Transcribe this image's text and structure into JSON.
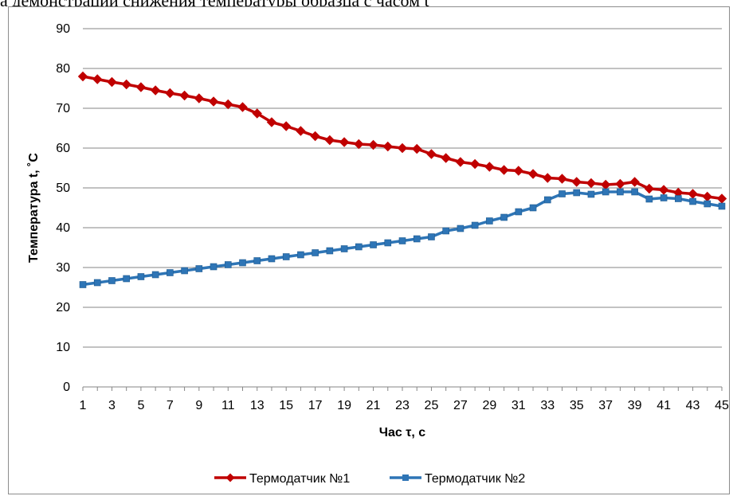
{
  "page": {
    "top_text": "а демонстрации снижения температуры образца с часом t"
  },
  "chart_data": {
    "type": "line",
    "title": "",
    "xlabel": "Час τ, с",
    "ylabel": "Температура t, ˚С",
    "ylim": [
      0,
      90
    ],
    "yticks": [
      "0",
      "10",
      "20",
      "30",
      "40",
      "50",
      "60",
      "70",
      "80",
      "90"
    ],
    "x": [
      1,
      2,
      3,
      4,
      5,
      6,
      7,
      8,
      9,
      10,
      11,
      12,
      13,
      14,
      15,
      16,
      17,
      18,
      19,
      20,
      21,
      22,
      23,
      24,
      25,
      26,
      27,
      28,
      29,
      30,
      31,
      32,
      33,
      34,
      35,
      36,
      37,
      38,
      39,
      40,
      41,
      42,
      43,
      44,
      45
    ],
    "xticks": [
      "1",
      "3",
      "5",
      "7",
      "9",
      "11",
      "13",
      "15",
      "17",
      "19",
      "21",
      "23",
      "25",
      "27",
      "29",
      "31",
      "33",
      "35",
      "37",
      "39",
      "41",
      "43",
      "45"
    ],
    "grid": true,
    "legend_position": "bottom",
    "series": [
      {
        "name": "Термодатчик №1",
        "color": "#c00000",
        "marker": "diamond",
        "values": [
          78.0,
          77.3,
          76.6,
          76.0,
          75.3,
          74.5,
          73.8,
          73.2,
          72.5,
          71.7,
          71.0,
          70.3,
          68.7,
          66.5,
          65.5,
          64.3,
          63.0,
          62.0,
          61.5,
          61.0,
          60.8,
          60.4,
          60.0,
          59.8,
          58.5,
          57.5,
          56.5,
          56.0,
          55.3,
          54.5,
          54.3,
          53.5,
          52.5,
          52.3,
          51.5,
          51.2,
          50.8,
          51.0,
          51.5,
          49.8,
          49.5,
          48.8,
          48.5,
          47.8,
          47.3
        ]
      },
      {
        "name": "Термодатчик №2",
        "color": "#2e75b6",
        "marker": "square",
        "values": [
          25.7,
          26.2,
          26.7,
          27.2,
          27.7,
          28.2,
          28.7,
          29.2,
          29.7,
          30.2,
          30.7,
          31.2,
          31.7,
          32.2,
          32.7,
          33.2,
          33.7,
          34.2,
          34.7,
          35.2,
          35.7,
          36.2,
          36.7,
          37.2,
          37.7,
          39.2,
          39.8,
          40.6,
          41.7,
          42.6,
          44.0,
          45.0,
          47.0,
          48.5,
          48.8,
          48.4,
          49.0,
          49.0,
          49.0,
          47.2,
          47.5,
          47.3,
          46.6,
          46.0,
          45.4
        ]
      }
    ]
  }
}
